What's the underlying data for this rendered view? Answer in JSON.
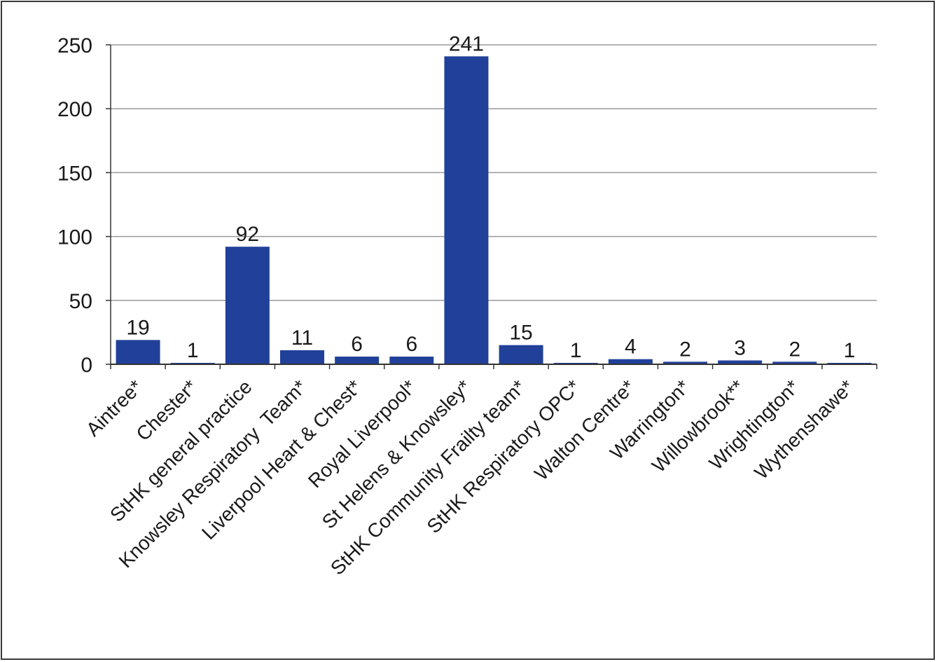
{
  "chart_data": {
    "type": "bar",
    "title": "",
    "xlabel": "",
    "ylabel": "",
    "categories": [
      "Aintree*",
      "Chester*",
      "StHK general practice",
      "Knowsley Respiratory  Team*",
      "Liverpool Heart & Chest*",
      "Royal Liverpool*",
      "St Helens & Knowsley*",
      "StHK Community Frailty team*",
      "StHK Respiratory OPC*",
      "Walton Centre*",
      "Warrington*",
      "Willowbrook**",
      "Wrightington*",
      "Wythenshawe*"
    ],
    "values": [
      19,
      1,
      92,
      11,
      6,
      6,
      241,
      15,
      1,
      4,
      2,
      3,
      2,
      1
    ],
    "data_labels": [
      "19",
      "1",
      "92",
      "11",
      "6",
      "6",
      "241",
      "15",
      "1",
      "4",
      "2",
      "3",
      "2",
      "1"
    ],
    "ylim": [
      0,
      250
    ],
    "yticks": [
      0,
      50,
      100,
      150,
      200,
      250
    ],
    "ytick_labels": [
      "0",
      "50",
      "100",
      "150",
      "200",
      "250"
    ],
    "grid": true,
    "legend": "none",
    "colors": {
      "bar": "#21409a",
      "grid": "#9a9a9a",
      "axis": "#333333"
    }
  }
}
